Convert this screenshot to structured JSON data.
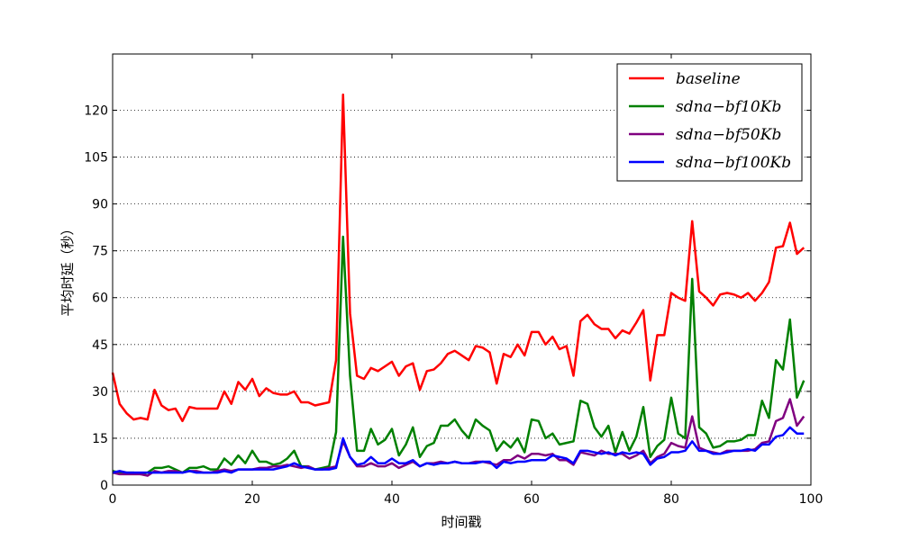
{
  "chart_data": {
    "type": "line",
    "xlabel": "时间戳",
    "ylabel": "平均时延（秒）",
    "xlim": [
      0,
      100
    ],
    "ylim": [
      0,
      138
    ],
    "xticks": [
      0,
      20,
      40,
      60,
      80,
      100
    ],
    "yticks": [
      0,
      15,
      30,
      45,
      60,
      75,
      90,
      105,
      120
    ],
    "grid": "horizontal-dotted",
    "legend_position": "upper-right",
    "x": [
      0,
      1,
      2,
      3,
      4,
      5,
      6,
      7,
      8,
      9,
      10,
      11,
      12,
      13,
      14,
      15,
      16,
      17,
      18,
      19,
      20,
      21,
      22,
      23,
      24,
      25,
      26,
      27,
      28,
      29,
      30,
      31,
      32,
      33,
      34,
      35,
      36,
      37,
      38,
      39,
      40,
      41,
      42,
      43,
      44,
      45,
      46,
      47,
      48,
      49,
      50,
      51,
      52,
      53,
      54,
      55,
      56,
      57,
      58,
      59,
      60,
      61,
      62,
      63,
      64,
      65,
      66,
      67,
      68,
      69,
      70,
      71,
      72,
      73,
      74,
      75,
      76,
      77,
      78,
      79,
      80,
      81,
      82,
      83,
      84,
      85,
      86,
      87,
      88,
      89,
      90,
      91,
      92,
      93,
      94,
      95,
      96,
      97,
      98,
      99
    ],
    "series": [
      {
        "name": "baseline",
        "color": "#ff0000",
        "values": [
          36,
          26,
          23,
          21,
          21.5,
          21,
          30.5,
          25.5,
          24,
          24.5,
          20.5,
          25,
          24.5,
          24.5,
          24.5,
          24.5,
          30,
          26,
          33,
          30.5,
          34,
          28.5,
          31,
          29.5,
          29,
          29,
          30,
          26.5,
          26.5,
          25.5,
          26,
          26.5,
          40,
          125,
          55,
          35,
          34,
          37.5,
          36.5,
          38,
          39.5,
          35,
          38,
          39,
          30.5,
          36.5,
          37,
          39,
          42,
          43,
          41.5,
          40,
          44.5,
          44,
          42.5,
          32.5,
          42,
          41,
          45,
          41.5,
          49,
          49,
          45,
          47.5,
          43.5,
          44.5,
          35,
          52.5,
          54.5,
          51.5,
          50,
          50,
          47,
          49.5,
          48.5,
          52,
          56,
          33.5,
          48,
          48,
          61.5,
          60,
          59,
          84.5,
          62,
          60,
          57.5,
          61,
          61.5,
          61,
          60,
          61.5,
          59,
          61.5,
          65,
          76,
          76.5,
          84,
          74,
          76
        ]
      },
      {
        "name": "sdna−bf10Kb",
        "color": "#008000",
        "values": [
          4.5,
          4,
          4,
          4,
          3.5,
          4,
          5.5,
          5.5,
          6,
          5,
          4,
          5.5,
          5.5,
          6,
          5,
          5,
          8.5,
          6.5,
          9.5,
          7,
          11,
          7.5,
          7.5,
          6.5,
          7,
          8.5,
          11,
          6,
          6,
          5,
          5.5,
          6,
          17,
          79.5,
          35,
          11,
          11,
          18,
          13,
          14.5,
          18,
          9.5,
          13,
          18.5,
          9,
          12.5,
          13.5,
          19,
          19,
          21,
          17.5,
          15,
          21,
          19,
          17.5,
          11,
          14,
          12,
          15,
          10.5,
          21,
          20.5,
          15,
          16.5,
          13,
          13.5,
          14,
          27,
          26,
          18.5,
          15.5,
          19,
          10.5,
          17,
          11,
          15.5,
          25,
          9,
          12.5,
          14.5,
          28,
          16.5,
          15,
          66,
          18.5,
          16.5,
          12,
          12.5,
          14,
          14,
          14.5,
          16,
          16,
          27,
          21.5,
          40,
          37,
          53,
          28,
          33.5
        ]
      },
      {
        "name": "sdna−bf50Kb",
        "color": "#800080",
        "values": [
          4,
          3.5,
          3.5,
          3.5,
          3.5,
          3,
          4.5,
          4,
          4.5,
          4.5,
          4,
          4.5,
          4.5,
          4,
          4,
          4.5,
          5,
          4.5,
          5,
          5,
          5,
          5.5,
          5.5,
          6,
          6,
          6.5,
          6,
          5.5,
          6,
          5,
          5,
          5.5,
          6,
          14,
          9,
          6,
          6,
          7,
          6,
          6,
          7,
          5.5,
          6.5,
          7.5,
          6,
          7,
          7,
          7.5,
          7,
          7.5,
          7,
          7,
          7.5,
          7.5,
          7,
          6.5,
          8,
          8,
          9.5,
          8.5,
          10,
          10,
          9.5,
          10,
          8,
          8,
          6.5,
          10.5,
          10,
          9.5,
          11,
          10,
          10,
          10,
          8.5,
          9.5,
          11,
          7,
          9,
          10,
          13.5,
          12.5,
          12,
          22,
          12,
          11,
          10.5,
          10,
          11,
          11,
          11,
          11,
          11.5,
          13.5,
          14,
          20.5,
          21.5,
          27.5,
          19,
          22
        ]
      },
      {
        "name": "sdna−bf100Kb",
        "color": "#0000ff",
        "values": [
          4,
          4.5,
          4,
          4,
          4,
          4,
          4,
          4,
          4,
          4,
          4,
          4.5,
          4,
          4,
          4,
          4,
          4.5,
          4,
          5,
          5,
          5,
          5,
          5,
          5,
          5.5,
          6,
          7,
          6,
          5.5,
          5,
          5,
          5,
          5.5,
          15,
          9,
          6.5,
          7,
          9,
          7,
          7,
          8.5,
          7,
          7,
          8,
          6,
          7,
          6.5,
          7,
          7,
          7.5,
          7,
          7,
          7,
          7.5,
          7.5,
          5.5,
          7.5,
          7,
          7.5,
          7.5,
          8,
          8,
          8,
          9.5,
          9,
          8.5,
          7,
          11,
          11,
          10.5,
          10,
          10.5,
          9.5,
          10.5,
          10,
          10.5,
          10,
          6.5,
          8.5,
          9,
          10.5,
          10.5,
          11,
          14,
          11,
          11,
          10,
          10,
          10.5,
          11,
          11,
          11.5,
          11,
          13,
          13,
          15.5,
          16,
          18.5,
          16.5,
          16.5
        ]
      }
    ]
  }
}
